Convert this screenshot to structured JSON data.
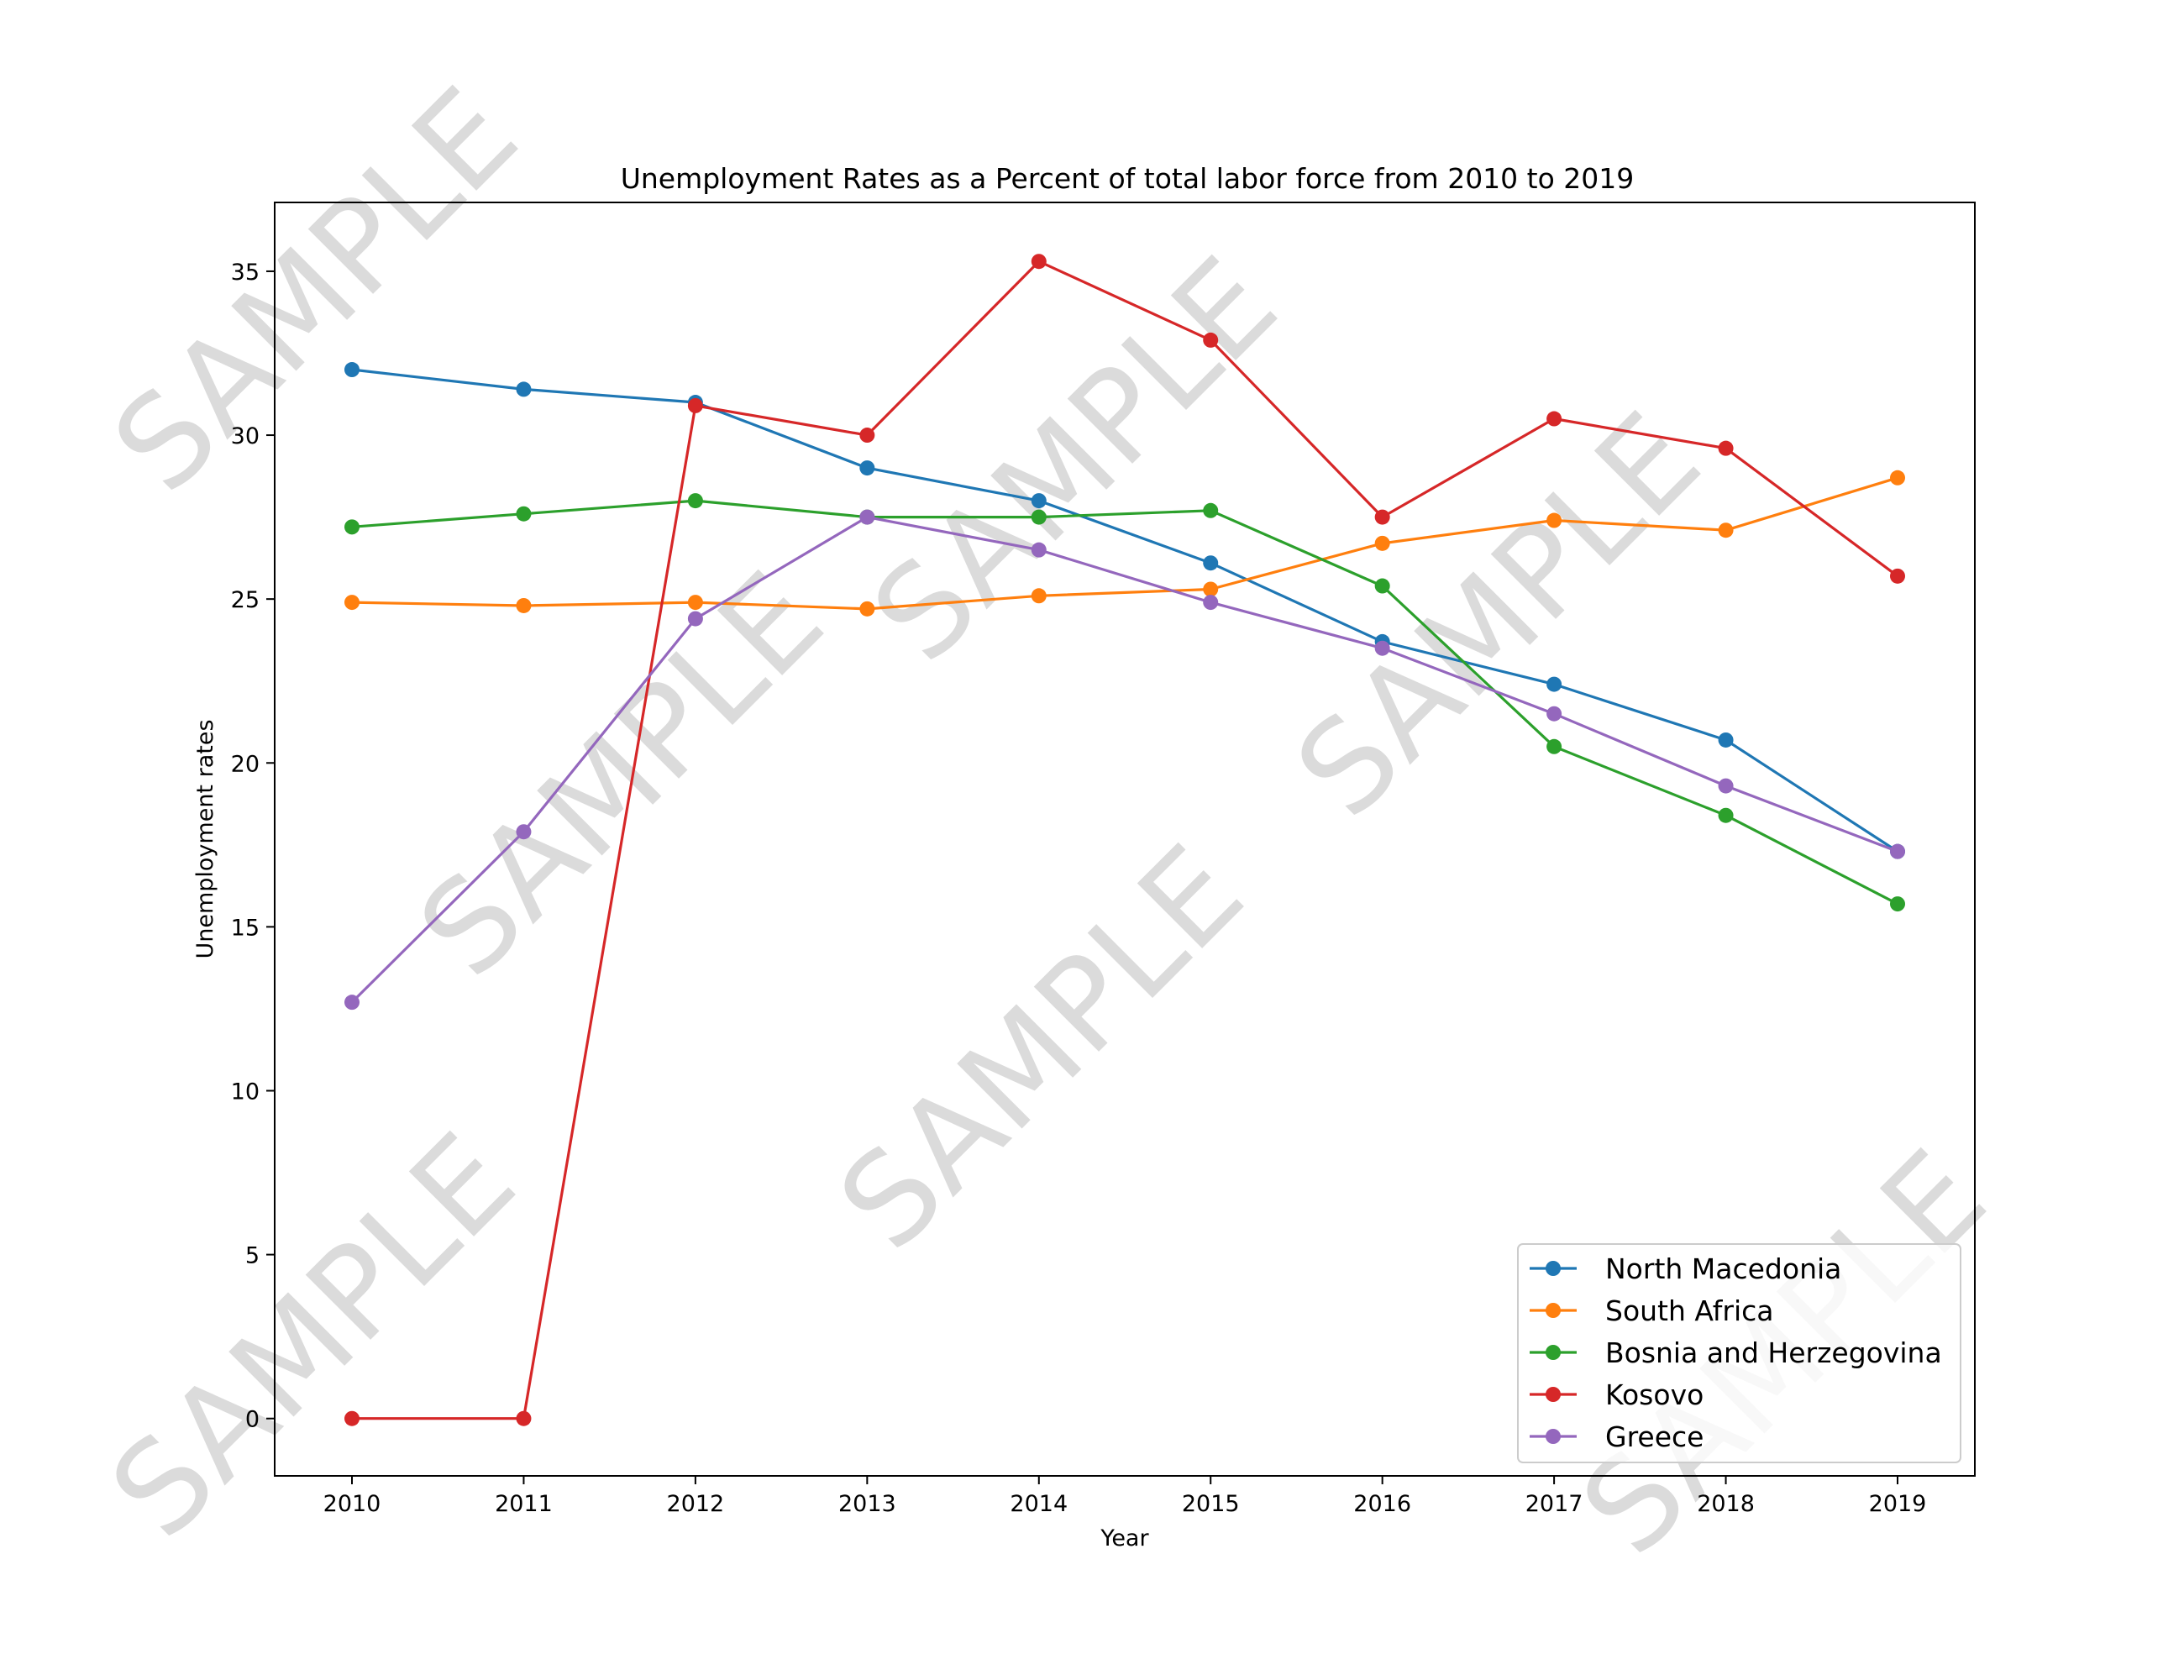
{
  "chart_data": {
    "type": "line",
    "title": "Unemployment Rates as a Percent of total labor force from 2010 to 2019",
    "xlabel": "Year",
    "ylabel": "Unemployment rates",
    "x": [
      2010,
      2011,
      2012,
      2013,
      2014,
      2015,
      2016,
      2017,
      2018,
      2019
    ],
    "xlim": [
      2009.55,
      2019.45
    ],
    "ylim": [
      -1.75,
      37.1
    ],
    "yticks": [
      0,
      5,
      10,
      15,
      20,
      25,
      30,
      35
    ],
    "grid": false,
    "legend_position": "lower-right",
    "markers": "circle",
    "series": [
      {
        "name": "North Macedonia",
        "color": "#1f77b4",
        "values": [
          32.0,
          31.4,
          31.0,
          29.0,
          28.0,
          26.1,
          23.7,
          22.4,
          20.7,
          17.3
        ]
      },
      {
        "name": "South Africa",
        "color": "#ff7f0e",
        "values": [
          24.9,
          24.8,
          24.9,
          24.7,
          25.1,
          25.3,
          26.7,
          27.4,
          27.1,
          28.7
        ]
      },
      {
        "name": "Bosnia and Herzegovina",
        "color": "#2ca02c",
        "values": [
          27.2,
          27.6,
          28.0,
          27.5,
          27.5,
          27.7,
          25.4,
          20.5,
          18.4,
          15.7
        ]
      },
      {
        "name": "Kosovo",
        "color": "#d62728",
        "values": [
          0,
          0,
          30.9,
          30.0,
          35.3,
          32.9,
          27.5,
          30.5,
          29.6,
          25.7
        ]
      },
      {
        "name": "Greece",
        "color": "#9467bd",
        "values": [
          12.7,
          17.9,
          24.4,
          27.5,
          26.5,
          24.9,
          23.5,
          21.5,
          19.3,
          17.3
        ]
      }
    ]
  },
  "watermark": {
    "text": "SAMPLE"
  }
}
